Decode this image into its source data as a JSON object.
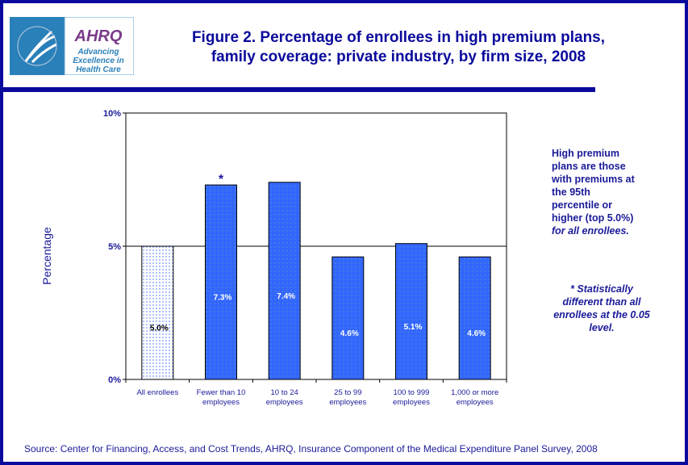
{
  "logo": {
    "hhs": "Department of Health & Human Services USA",
    "brand": "AHRQ",
    "tagline": [
      "Advancing",
      "Excellence in",
      "Health Care"
    ]
  },
  "title_lines": [
    "Figure 2. Percentage of enrollees in high premium plans,",
    "family coverage: private industry, by firm size, 2008"
  ],
  "notes": {
    "definition": "High premium plans are those with premiums at the 95th percentile or higher (top 5.0%)",
    "definition_italic": " for all enrollees.",
    "significance": "* Statistically different than all enrollees at the 0.05 level."
  },
  "source": "Source: Center for Financing, Access, and Cost Trends, AHRQ, Insurance Component of the Medical Expenditure Panel Survey, 2008",
  "chart_data": {
    "type": "bar",
    "title": "Figure 2. Percentage of enrollees in high premium plans, family coverage: private industry, by firm size, 2008",
    "xlabel": "",
    "ylabel": "Percentage",
    "ylim": [
      0,
      10
    ],
    "yticks": [
      "0%",
      "5%",
      "10%"
    ],
    "categories": [
      [
        "All enrollees"
      ],
      [
        "Fewer than 10",
        "employees"
      ],
      [
        "10 to 24",
        "employees"
      ],
      [
        "25 to 99",
        "employees"
      ],
      [
        "100 to 999",
        "employees"
      ],
      [
        "1,000 or more",
        "employees"
      ]
    ],
    "values": [
      5.0,
      7.3,
      7.4,
      4.6,
      5.1,
      4.6
    ],
    "labels": [
      "5.0%",
      "7.3%",
      "7.4%",
      "4.6%",
      "5.1%",
      "4.6%"
    ],
    "significant": [
      false,
      true,
      false,
      false,
      false,
      false
    ],
    "significance_marker": "*",
    "grid": true,
    "colors": {
      "bar": "#3366ff",
      "reference": "#ffffff",
      "text": "#1a1a99"
    }
  }
}
